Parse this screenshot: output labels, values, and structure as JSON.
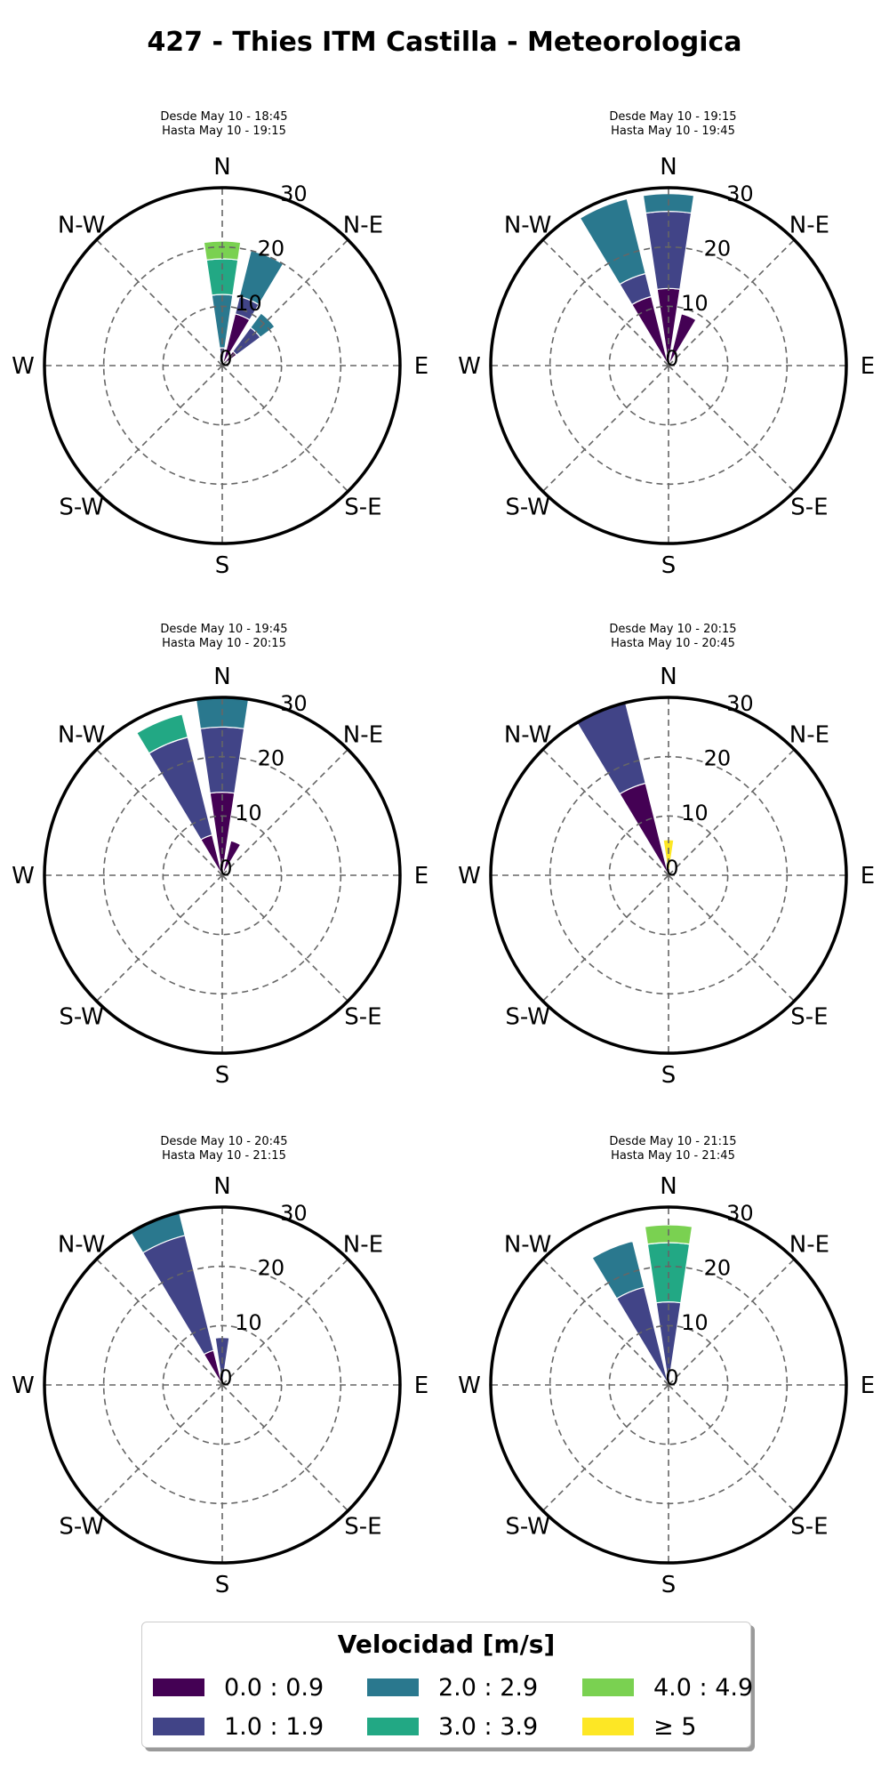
{
  "title": "427 - Thies ITM Castilla - Meteorologica",
  "legend": {
    "title": "Velocidad [m/s]",
    "bins": [
      {
        "label": "0.0 : 0.9",
        "color": "#440154"
      },
      {
        "label": "1.0 : 1.9",
        "color": "#414487"
      },
      {
        "label": "2.0 : 2.9",
        "color": "#2a788e"
      },
      {
        "label": "3.0 : 3.9",
        "color": "#22a884"
      },
      {
        "label": "4.0 : 4.9",
        "color": "#7ad151"
      },
      {
        "label": "≥  5",
        "color": "#fde725"
      }
    ]
  },
  "chart_data": [
    {
      "type": "windrose",
      "title": "Desde May 10 - 18:45",
      "subtitle": "Hasta May 10 - 19:15",
      "direction_labels": [
        "N",
        "N-E",
        "E",
        "S-E",
        "S",
        "S-W",
        "W",
        "N-W"
      ],
      "radial_ticks": [
        "0",
        "10",
        "20",
        "30"
      ],
      "rlim": [
        0,
        30
      ],
      "grid": true,
      "sectors": [
        {
          "direction": 0,
          "stacks": [
            0,
            3,
            9,
            6,
            3,
            0
          ]
        },
        {
          "direction": 22.5,
          "stacks": [
            9,
            3,
            8,
            0,
            0,
            0
          ]
        },
        {
          "direction": 45,
          "stacks": [
            3,
            5,
            3,
            0,
            0,
            0
          ]
        },
        {
          "direction": 67.5,
          "stacks": [
            1,
            0,
            0,
            0,
            0,
            0
          ]
        },
        {
          "direction": 337.5,
          "stacks": [
            0,
            0,
            1,
            0,
            0,
            0
          ]
        }
      ]
    },
    {
      "type": "windrose",
      "title": "Desde May 10 - 19:15",
      "subtitle": "Hasta May 10 - 19:45",
      "direction_labels": [
        "N",
        "N-E",
        "E",
        "S-E",
        "S",
        "S-W",
        "W",
        "N-W"
      ],
      "radial_ticks": [
        "0",
        "10",
        "20",
        "30"
      ],
      "rlim": [
        0,
        30
      ],
      "grid": true,
      "sectors": [
        {
          "direction": 0,
          "stacks": [
            13,
            13,
            3,
            0,
            0,
            0
          ]
        },
        {
          "direction": 22.5,
          "stacks": [
            9,
            0,
            0,
            0,
            0,
            0
          ]
        },
        {
          "direction": 337.5,
          "stacks": [
            12,
            4,
            13,
            0,
            0,
            0
          ]
        }
      ]
    },
    {
      "type": "windrose",
      "title": "Desde May 10 - 19:45",
      "subtitle": "Hasta May 10 - 20:15",
      "direction_labels": [
        "N",
        "N-E",
        "E",
        "S-E",
        "S",
        "S-W",
        "W",
        "N-W"
      ],
      "radial_ticks": [
        "0",
        "10",
        "20",
        "30"
      ],
      "rlim": [
        0,
        30
      ],
      "grid": true,
      "sectors": [
        {
          "direction": 0,
          "stacks": [
            14,
            11,
            5,
            0,
            0,
            0
          ]
        },
        {
          "direction": 22.5,
          "stacks": [
            6,
            0,
            0,
            0,
            0,
            0
          ]
        },
        {
          "direction": 337.5,
          "stacks": [
            7,
            17,
            0,
            4,
            0,
            0
          ]
        }
      ]
    },
    {
      "type": "windrose",
      "title": "Desde May 10 - 20:15",
      "subtitle": "Hasta May 10 - 20:45",
      "direction_labels": [
        "N",
        "N-E",
        "E",
        "S-E",
        "S",
        "S-W",
        "W",
        "N-W"
      ],
      "radial_ticks": [
        "0",
        "10",
        "20",
        "30"
      ],
      "rlim": [
        0,
        30
      ],
      "grid": true,
      "sectors": [
        {
          "direction": 0,
          "stacks": [
            0,
            0,
            0,
            0,
            0,
            6
          ]
        },
        {
          "direction": 337.5,
          "stacks": [
            16,
            14,
            0,
            0,
            0,
            0
          ]
        }
      ]
    },
    {
      "type": "windrose",
      "title": "Desde May 10 - 20:45",
      "subtitle": "Hasta May 10 - 21:15",
      "direction_labels": [
        "N",
        "N-E",
        "E",
        "S-E",
        "S",
        "S-W",
        "W",
        "N-W"
      ],
      "radial_ticks": [
        "0",
        "10",
        "20",
        "30"
      ],
      "rlim": [
        0,
        30
      ],
      "grid": true,
      "sectors": [
        {
          "direction": 0,
          "stacks": [
            0,
            8,
            0,
            0,
            0,
            0
          ]
        },
        {
          "direction": 337.5,
          "stacks": [
            6,
            20,
            4,
            0,
            0,
            0
          ]
        }
      ]
    },
    {
      "type": "windrose",
      "title": "Desde May 10 - 21:15",
      "subtitle": "Hasta May 10 - 21:45",
      "direction_labels": [
        "N",
        "N-E",
        "E",
        "S-E",
        "S",
        "S-W",
        "W",
        "N-W"
      ],
      "radial_ticks": [
        "0",
        "10",
        "20",
        "30"
      ],
      "rlim": [
        0,
        30
      ],
      "grid": true,
      "sectors": [
        {
          "direction": 0,
          "stacks": [
            0,
            14,
            0,
            10,
            3,
            0
          ]
        },
        {
          "direction": 337.5,
          "stacks": [
            0,
            17,
            8,
            0,
            0,
            0
          ]
        }
      ]
    }
  ]
}
